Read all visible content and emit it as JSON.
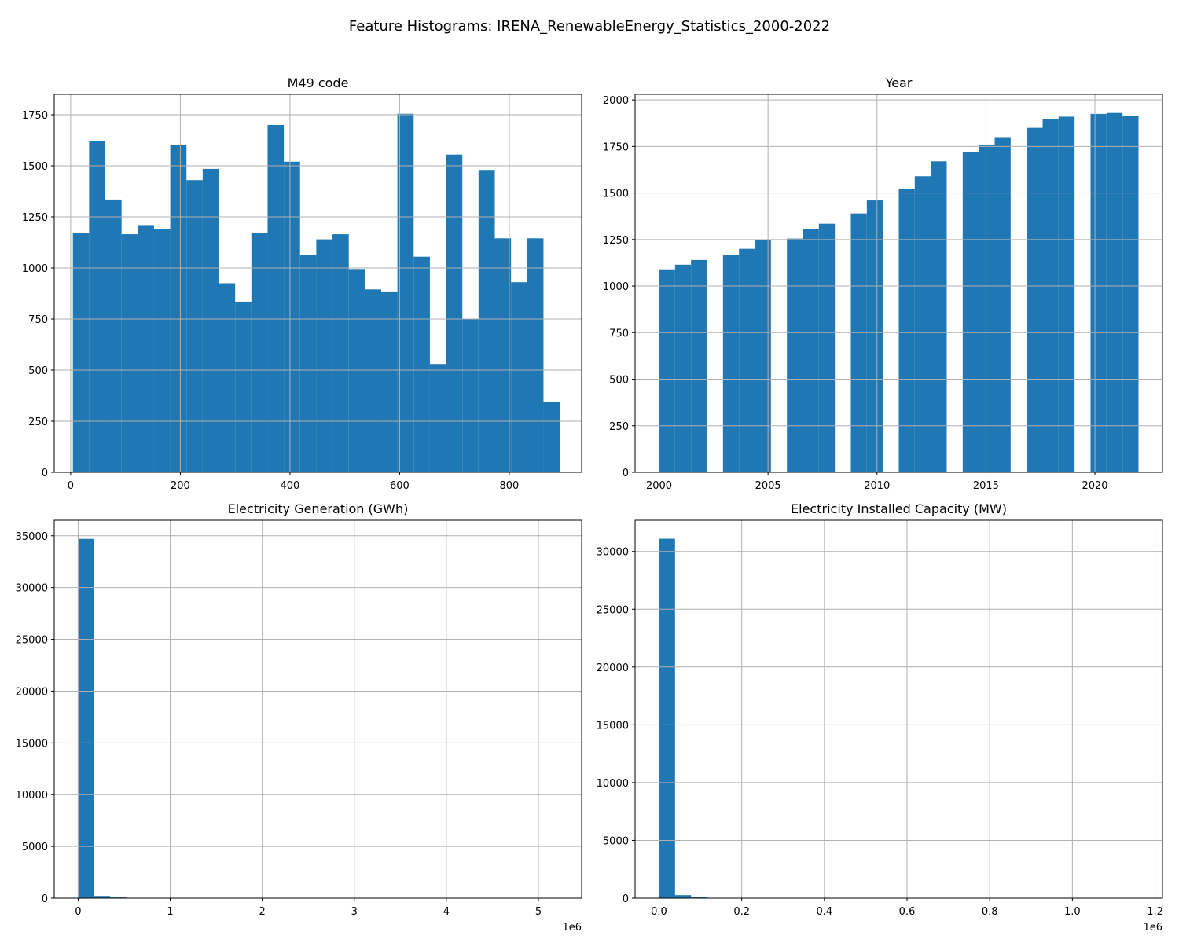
{
  "suptitle": "Feature Histograms: IRENA_RenewableEnergy_Statistics_2000-2022",
  "bar_color": "#1f77b4",
  "grid_color": "#b0b0b0",
  "chart_data": [
    {
      "type": "bar",
      "title": "M49 code",
      "xlim": [
        -30,
        932
      ],
      "ylim": [
        0,
        1850
      ],
      "xticks": [
        0,
        200,
        400,
        600,
        800
      ],
      "xtick_labels": [
        "0",
        "200",
        "400",
        "600",
        "800"
      ],
      "yticks": [
        0,
        250,
        500,
        750,
        1000,
        1250,
        1500,
        1750
      ],
      "ytick_labels": [
        "0",
        "250",
        "500",
        "750",
        1000,
        "1250",
        "1500",
        "1750"
      ],
      "axis_offset_label": "",
      "bin_edges": [
        4,
        33.6,
        63.2,
        92.8,
        122.4,
        152,
        181.6,
        211.2,
        240.8,
        270.4,
        300,
        329.6,
        359.2,
        388.8,
        418.4,
        448,
        477.6,
        507.2,
        536.8,
        566.4,
        596,
        625.6,
        655.2,
        684.8,
        714.4,
        744,
        773.6,
        803.2,
        832.8,
        862.4,
        892
      ],
      "values": [
        1170,
        1620,
        1335,
        1165,
        1210,
        1190,
        1600,
        1430,
        1485,
        925,
        835,
        1170,
        1700,
        1520,
        1065,
        1140,
        1165,
        995,
        895,
        885,
        1755,
        1055,
        530,
        1555,
        750,
        1480,
        1145,
        930,
        1145,
        345
      ]
    },
    {
      "type": "bar",
      "title": "Year",
      "xlim": [
        1998.9,
        2023.1
      ],
      "ylim": [
        0,
        2030
      ],
      "xticks": [
        2000,
        2005,
        2010,
        2015,
        2020
      ],
      "xtick_labels": [
        "2000",
        "2005",
        "2010",
        "2015",
        "2020"
      ],
      "yticks": [
        0,
        250,
        500,
        750,
        1000,
        1250,
        1500,
        1750,
        2000
      ],
      "ytick_labels": [
        "0",
        "250",
        "500",
        "750",
        "1000",
        "1250",
        "1500",
        "1750",
        "2000"
      ],
      "axis_offset_label": "",
      "bin_edges": [
        2000,
        2000.7333,
        2001.4667,
        2002.2,
        2002.9333,
        2003.6667,
        2004.4,
        2005.1333,
        2005.8667,
        2006.6,
        2007.3333,
        2008.0667,
        2008.8,
        2009.5333,
        2010.2667,
        2011,
        2011.7333,
        2012.4667,
        2013.2,
        2013.9333,
        2014.6667,
        2015.4,
        2016.1333,
        2016.8667,
        2017.6,
        2018.3333,
        2019.0667,
        2019.8,
        2020.5333,
        2021.2667,
        2022
      ],
      "values": [
        1090,
        1115,
        1140,
        0,
        1165,
        1200,
        1245,
        0,
        1255,
        1305,
        1335,
        0,
        1390,
        1460,
        0,
        1520,
        1590,
        1670,
        0,
        1720,
        1760,
        1800,
        0,
        1850,
        1895,
        1910,
        0,
        1925,
        1930,
        1915
      ]
    },
    {
      "type": "bar",
      "title": "Electricity Generation (GWh)",
      "xlim": [
        -260000,
        5470000
      ],
      "ylim": [
        0,
        36500
      ],
      "xticks": [
        0,
        1000000,
        2000000,
        3000000,
        4000000,
        5000000
      ],
      "xtick_labels": [
        "0",
        "1",
        "2",
        "3",
        "4",
        "5"
      ],
      "yticks": [
        0,
        5000,
        10000,
        15000,
        20000,
        25000,
        30000,
        35000
      ],
      "ytick_labels": [
        "0",
        "5000",
        "10000",
        "15000",
        "20000",
        "25000",
        "30000",
        "35000"
      ],
      "axis_offset_label": "1e6",
      "bin_edges": [
        0,
        173600,
        347200,
        520800,
        694400,
        868000,
        1041600,
        1215200,
        1388800,
        1562400,
        1736000,
        1909600,
        2083200,
        2256800,
        2430400,
        2604000,
        2777600,
        2951200,
        3124800,
        3298400,
        3472000,
        3645600,
        3819200,
        3992800,
        4166400,
        4340000,
        4513600,
        4687200,
        4860800,
        5034400,
        5208000
      ],
      "values": [
        34700,
        210,
        70,
        25,
        10,
        5,
        3,
        2,
        2,
        1,
        1,
        1,
        1,
        1,
        1,
        1,
        1,
        1,
        1,
        1,
        1,
        1,
        1,
        1,
        1,
        1,
        1,
        1,
        1,
        1
      ]
    },
    {
      "type": "bar",
      "title": "Electricity Installed Capacity (MW)",
      "xlim": [
        -58000,
        1218000
      ],
      "ylim": [
        0,
        32700
      ],
      "xticks": [
        0,
        200000,
        400000,
        600000,
        800000,
        1000000,
        1200000
      ],
      "xtick_labels": [
        "0.0",
        "0.2",
        "0.4",
        "0.6",
        "0.8",
        "1.0",
        "1.2"
      ],
      "yticks": [
        0,
        5000,
        10000,
        15000,
        20000,
        25000,
        30000
      ],
      "ytick_labels": [
        "0",
        "5000",
        "10000",
        "15000",
        "20000",
        "25000",
        "30000"
      ],
      "axis_offset_label": "1e6",
      "bin_edges": [
        0,
        38666.7,
        77333.3,
        116000,
        154666.7,
        193333.3,
        232000,
        270666.7,
        309333.3,
        348000,
        386666.7,
        425333.3,
        464000,
        502666.7,
        541333.3,
        580000,
        618666.7,
        657333.3,
        696000,
        734666.7,
        773333.3,
        812000,
        850666.7,
        889333.3,
        928000,
        966666.7,
        1005333.3,
        1044000,
        1082666.7,
        1121333.3,
        1160000
      ],
      "values": [
        31100,
        260,
        65,
        20,
        8,
        4,
        2,
        1,
        1,
        1,
        1,
        1,
        1,
        1,
        1,
        1,
        1,
        1,
        1,
        1,
        1,
        1,
        1,
        1,
        1,
        1,
        1,
        1,
        1,
        1
      ]
    }
  ]
}
